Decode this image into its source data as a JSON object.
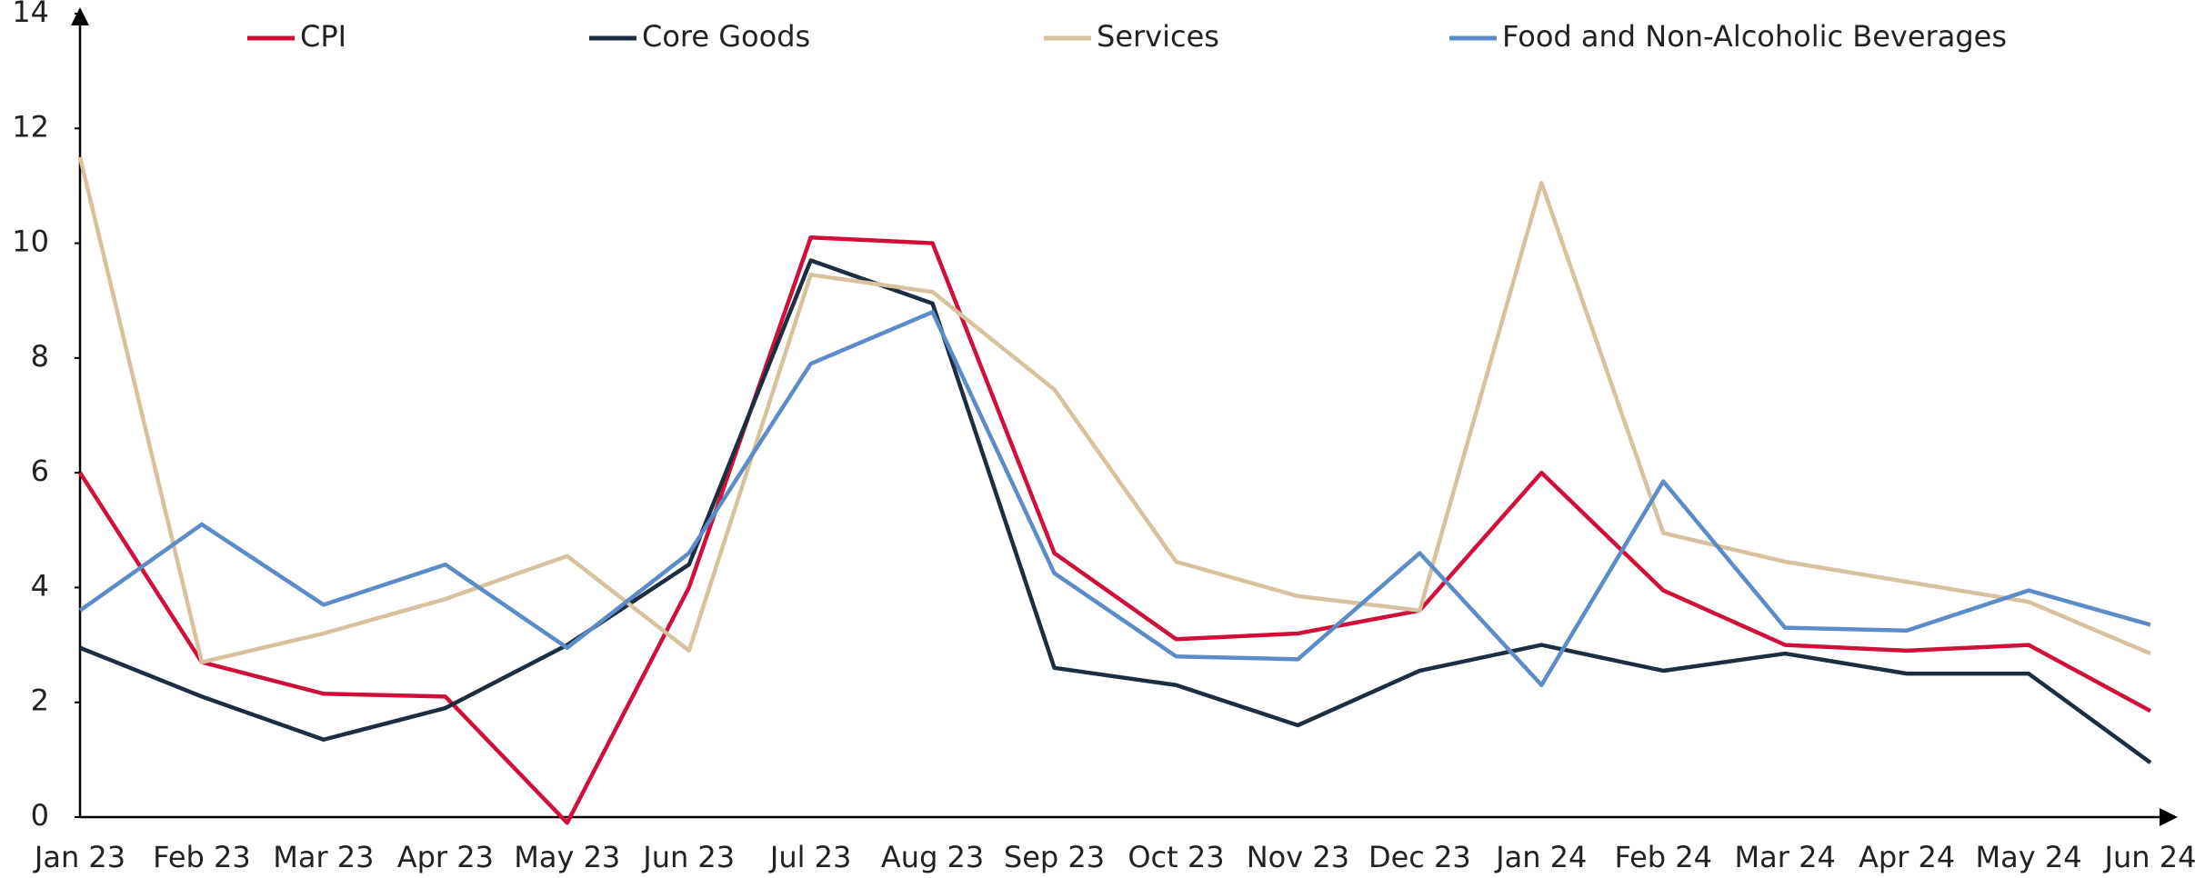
{
  "chart_data": {
    "type": "line",
    "categories": [
      "Jan 23",
      "Feb 23",
      "Mar 23",
      "Apr 23",
      "May 23",
      "Jun 23",
      "Jul 23",
      "Aug 23",
      "Sep 23",
      "Oct 23",
      "Nov 23",
      "Dec 23",
      "Jan 24",
      "Feb 24",
      "Mar 24",
      "Apr 24",
      "May 24",
      "Jun 24"
    ],
    "series": [
      {
        "name": "CPI",
        "color": "#d0103a",
        "values": [
          6.0,
          2.7,
          2.15,
          2.1,
          -0.1,
          4.0,
          10.1,
          10.0,
          4.6,
          3.1,
          3.2,
          3.6,
          6.0,
          3.95,
          3.0,
          2.9,
          3.0,
          1.85
        ]
      },
      {
        "name": "Core Goods",
        "color": "#1c2e40",
        "values": [
          2.95,
          2.1,
          1.35,
          1.9,
          3.0,
          4.4,
          9.7,
          8.95,
          2.6,
          2.3,
          1.6,
          2.55,
          3.0,
          2.55,
          2.85,
          2.5,
          2.5,
          0.95
        ]
      },
      {
        "name": "Services",
        "color": "#d6c29e",
        "values": [
          11.5,
          2.7,
          3.2,
          3.8,
          4.55,
          2.9,
          9.45,
          9.15,
          7.45,
          4.45,
          3.85,
          3.6,
          11.05,
          4.95,
          4.45,
          4.1,
          3.75,
          2.85
        ]
      },
      {
        "name": "Food and Non-Alcoholic Beverages",
        "color": "#5b8cc8",
        "values": [
          3.6,
          5.1,
          3.7,
          4.4,
          2.95,
          4.6,
          7.9,
          8.8,
          4.25,
          2.8,
          2.75,
          4.6,
          2.3,
          5.85,
          3.3,
          3.25,
          3.95,
          3.35
        ]
      }
    ],
    "ylim": [
      0,
      14
    ],
    "yticks": [
      0,
      2,
      4,
      6,
      8,
      10,
      12,
      14
    ],
    "grid": false,
    "legend": "top"
  }
}
